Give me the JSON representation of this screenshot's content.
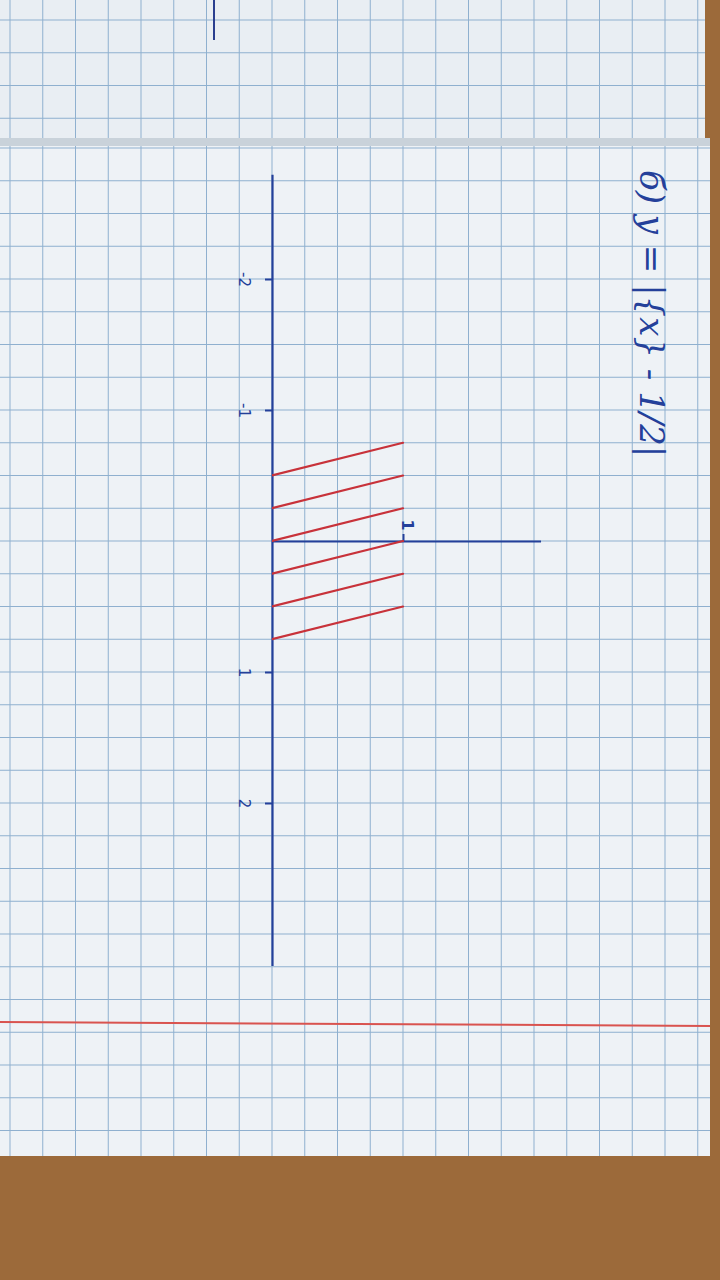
{
  "chart_data": {
    "type": "line",
    "title": "б) y = |{x} - 1/2|",
    "x": [
      -0.75,
      -0.5,
      null,
      -0.5,
      -0.25,
      null,
      -0.25,
      0,
      null,
      0,
      0.25,
      null,
      0.25,
      0.5,
      null,
      0.5,
      0.75
    ],
    "values": [
      1,
      0,
      null,
      1,
      0,
      null,
      1,
      0,
      null,
      1,
      0,
      null,
      1,
      0,
      null,
      1,
      0
    ],
    "color": "#c8323a",
    "xlim": [
      -2.8,
      3.24
    ],
    "ylim": [
      0,
      2.05
    ],
    "xticks": [
      -2,
      -1,
      1,
      2
    ],
    "yticks": [
      1
    ]
  }
}
